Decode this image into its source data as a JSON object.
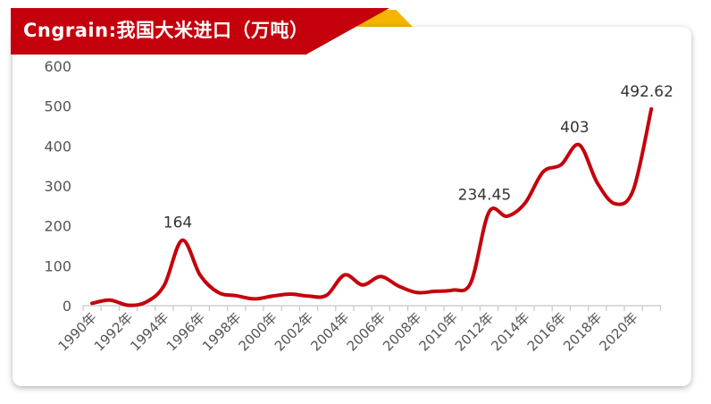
{
  "header": {
    "title": "Cngrain:我国大米进口（万吨）"
  },
  "colors": {
    "banner": "#c4000c",
    "accent": "#f5b400",
    "line": "#c4000c"
  },
  "chart_data": {
    "type": "line",
    "title": "Cngrain:我国大米进口（万吨）",
    "xlabel": "",
    "ylabel": "",
    "ylim": [
      0,
      600
    ],
    "yticks": [
      "0",
      "100",
      "200",
      "300",
      "400",
      "500",
      "600"
    ],
    "x_tick_labels": [
      "1990年",
      "1992年",
      "1994年",
      "1996年",
      "1998年",
      "2000年",
      "2002年",
      "2004年",
      "2006年",
      "2008年",
      "2010年",
      "2012年",
      "2014年",
      "2016年",
      "2018年",
      "2020年"
    ],
    "x": [
      1990,
      1991,
      1992,
      1993,
      1994,
      1995,
      1996,
      1997,
      1998,
      1999,
      2000,
      2001,
      2002,
      2003,
      2004,
      2005,
      2006,
      2007,
      2008,
      2009,
      2010,
      2011,
      2012,
      2013,
      2014,
      2015,
      2016,
      2017,
      2018,
      2019,
      2020,
      2021
    ],
    "values": [
      6,
      14,
      1,
      9,
      51,
      164,
      76,
      33,
      25,
      17,
      24,
      29,
      24,
      26,
      77,
      52,
      73,
      49,
      33,
      36,
      39,
      58,
      234.45,
      224,
      257,
      335,
      353,
      403,
      308,
      255,
      290,
      492.62
    ],
    "data_labels": [
      {
        "index": 5,
        "text": "164"
      },
      {
        "index": 22,
        "text": "234.45"
      },
      {
        "index": 27,
        "text": "403"
      },
      {
        "index": 31,
        "text": "492.62"
      }
    ],
    "grid": false,
    "legend": "none"
  }
}
